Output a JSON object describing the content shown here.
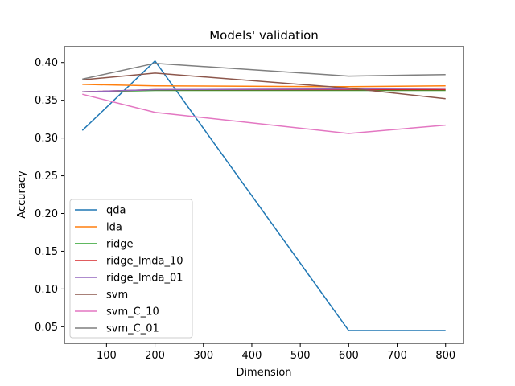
{
  "chart_data": {
    "type": "line",
    "title": "Models' validation",
    "xlabel": "Dimension",
    "ylabel": "Accuracy",
    "x": [
      50,
      200,
      600,
      800
    ],
    "xlim": [
      13,
      837
    ],
    "ylim": [
      0.028,
      0.421
    ],
    "xticks": [
      100,
      200,
      300,
      400,
      500,
      600,
      700,
      800
    ],
    "yticks": [
      0.05,
      0.1,
      0.15,
      0.2,
      0.25,
      0.3,
      0.35,
      0.4
    ],
    "xtick_labels": [
      "100",
      "200",
      "300",
      "400",
      "500",
      "600",
      "700",
      "800"
    ],
    "ytick_labels": [
      "0.05",
      "0.10",
      "0.15",
      "0.20",
      "0.25",
      "0.30",
      "0.35",
      "0.40"
    ],
    "grid": false,
    "legend_position": "lower left",
    "series": [
      {
        "name": "qda",
        "color": "#1f77b4",
        "values": [
          0.31,
          0.402,
          0.045,
          0.045
        ]
      },
      {
        "name": "lda",
        "color": "#ff7f0e",
        "values": [
          0.371,
          0.369,
          0.368,
          0.369
        ]
      },
      {
        "name": "ridge",
        "color": "#2ca02c",
        "values": [
          0.361,
          0.363,
          0.363,
          0.363
        ]
      },
      {
        "name": "ridge_lmda_10",
        "color": "#d62728",
        "values": [
          0.361,
          0.364,
          0.364,
          0.364
        ]
      },
      {
        "name": "ridge_lmda_01",
        "color": "#9467bd",
        "values": [
          0.361,
          0.364,
          0.365,
          0.366
        ]
      },
      {
        "name": "svm",
        "color": "#8c564b",
        "values": [
          0.377,
          0.386,
          0.366,
          0.352
        ]
      },
      {
        "name": "svm_C_10",
        "color": "#e377c2",
        "values": [
          0.358,
          0.334,
          0.306,
          0.317
        ]
      },
      {
        "name": "svm_C_01",
        "color": "#7f7f7f",
        "values": [
          0.378,
          0.399,
          0.382,
          0.384
        ]
      }
    ]
  }
}
